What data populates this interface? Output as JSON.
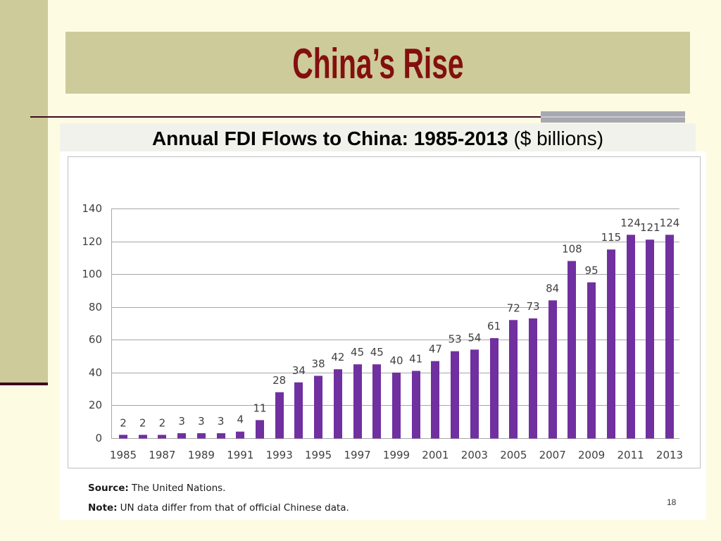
{
  "slide": {
    "title": "China’s Rise",
    "page_number": "18"
  },
  "theme": {
    "background": "#FDFCE3",
    "accent": "#CDCB9A",
    "title_color": "#840F0F",
    "rule": "#3D0B22",
    "bar": "#7030A0",
    "grid": "#A6A6A6"
  },
  "chart_data": {
    "type": "bar",
    "title": "Annual FDI Flows to China: 1985-2013",
    "title_unit": "($ billions)",
    "categories": [
      1985,
      1986,
      1987,
      1988,
      1989,
      1990,
      1991,
      1992,
      1993,
      1994,
      1995,
      1996,
      1997,
      1998,
      1999,
      2000,
      2001,
      2002,
      2003,
      2004,
      2005,
      2006,
      2007,
      2008,
      2009,
      2010,
      2011,
      2012,
      2013
    ],
    "values": [
      2,
      2,
      2,
      3,
      3,
      3,
      4,
      11,
      28,
      34,
      38,
      42,
      45,
      45,
      40,
      41,
      47,
      53,
      54,
      61,
      72,
      73,
      84,
      108,
      95,
      115,
      124,
      121,
      124
    ],
    "x_tick_labels": [
      "1985",
      "1987",
      "1989",
      "1991",
      "1993",
      "1995",
      "1997",
      "1999",
      "2001",
      "2003",
      "2005",
      "2007",
      "2009",
      "2011",
      "2013"
    ],
    "y_ticks": [
      0,
      20,
      40,
      60,
      80,
      100,
      120,
      140
    ],
    "ylim": [
      0,
      140
    ],
    "grid": true,
    "data_labels": true
  },
  "notes": {
    "source_label": "Source:",
    "source_text": "The United Nations.",
    "note_label": "Note:",
    "note_text": "UN data differ from that of official Chinese data."
  }
}
